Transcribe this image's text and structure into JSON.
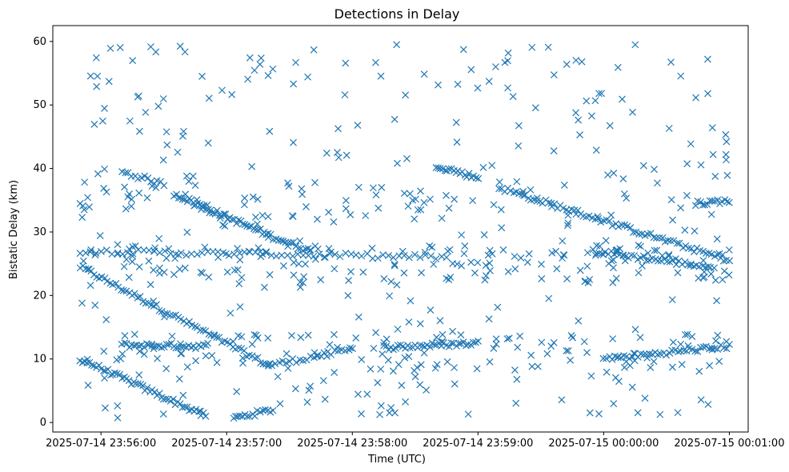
{
  "chart_data": {
    "type": "scatter",
    "title": "Detections in Delay",
    "xlabel": "Time (UTC)",
    "ylabel": "Bistatic Delay (km)",
    "marker": "x",
    "color": "#1f77b4",
    "grid": false,
    "xlim": [
      "2025-07-14 23:55:37",
      "2025-07-15 00:01:09"
    ],
    "ylim": [
      -1.5,
      62.5
    ],
    "xticks": [
      {
        "value": "2025-07-14 23:56:00",
        "label": "2025-07-14 23:56:00"
      },
      {
        "value": "2025-07-14 23:57:00",
        "label": "2025-07-14 23:57:00"
      },
      {
        "value": "2025-07-14 23:58:00",
        "label": "2025-07-14 23:58:00"
      },
      {
        "value": "2025-07-14 23:59:00",
        "label": "2025-07-14 23:59:00"
      },
      {
        "value": "2025-07-15 00:00:00",
        "label": "2025-07-15 00:00:00"
      },
      {
        "value": "2025-07-15 00:01:00",
        "label": "2025-07-15 00:01:00"
      }
    ],
    "yticks": [
      0,
      10,
      20,
      30,
      40,
      50,
      60
    ],
    "tracks": [
      {
        "x_start": "2025-07-14 23:55:50",
        "x_end": "2025-07-14 23:57:20",
        "y_start": 24.5,
        "y_end": 9.0,
        "n": 70
      },
      {
        "x_start": "2025-07-14 23:57:20",
        "x_end": "2025-07-14 23:58:00",
        "y_start": 9.0,
        "y_end": 11.5,
        "n": 25
      },
      {
        "x_start": "2025-07-14 23:55:50",
        "x_end": "2025-07-14 23:56:50",
        "y_start": 10.0,
        "y_end": 1.0,
        "n": 55
      },
      {
        "x_start": "2025-07-14 23:57:05",
        "x_end": "2025-07-14 23:57:22",
        "y_start": 0.8,
        "y_end": 2.0,
        "n": 15
      },
      {
        "x_start": "2025-07-14 23:56:10",
        "x_end": "2025-07-14 23:56:30",
        "y_start": 39.5,
        "y_end": 37.5,
        "n": 14
      },
      {
        "x_start": "2025-07-14 23:56:35",
        "x_end": "2025-07-14 23:57:20",
        "y_start": 36.0,
        "y_end": 29.5,
        "n": 45
      },
      {
        "x_start": "2025-07-14 23:57:20",
        "x_end": "2025-07-14 23:57:40",
        "y_start": 29.5,
        "y_end": 27.0,
        "n": 18
      },
      {
        "x_start": "2025-07-14 23:55:50",
        "x_end": "2025-07-14 23:58:45",
        "y_start": 27.0,
        "y_end": 26.0,
        "n": 70
      },
      {
        "x_start": "2025-07-14 23:56:10",
        "x_end": "2025-07-14 23:56:50",
        "y_start": 12.2,
        "y_end": 12.0,
        "n": 35
      },
      {
        "x_start": "2025-07-14 23:58:15",
        "x_end": "2025-07-14 23:59:00",
        "y_start": 11.8,
        "y_end": 12.5,
        "n": 40
      },
      {
        "x_start": "2025-07-14 23:58:40",
        "x_end": "2025-07-14 23:59:00",
        "y_start": 40.5,
        "y_end": 38.5,
        "n": 20
      },
      {
        "x_start": "2025-07-14 23:59:10",
        "x_end": "2025-07-15 00:01:00",
        "y_start": 37.0,
        "y_end": 25.5,
        "n": 80
      },
      {
        "x_start": "2025-07-15 00:00:00",
        "x_end": "2025-07-15 00:01:00",
        "y_start": 10.0,
        "y_end": 12.0,
        "n": 45
      },
      {
        "x_start": "2025-07-14 23:59:55",
        "x_end": "2025-07-15 00:00:50",
        "y_start": 27.0,
        "y_end": 24.5,
        "n": 40
      },
      {
        "x_start": "2025-07-15 00:00:45",
        "x_end": "2025-07-15 00:01:00",
        "y_start": 34.5,
        "y_end": 35.0,
        "n": 14
      }
    ],
    "scatter_points_approx": 620,
    "x_range_points": [
      "2025-07-14 23:55:50",
      "2025-07-15 00:01:00"
    ],
    "y_range_points": [
      0.5,
      60.0
    ]
  }
}
